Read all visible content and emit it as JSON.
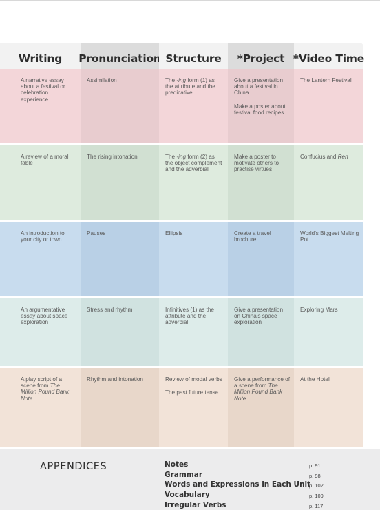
{
  "header": {
    "columns": [
      "Writing",
      "Pronunciation",
      "Structure",
      "*Project",
      "*Video Time"
    ]
  },
  "row_colors": [
    [
      "#f3d6d9",
      "#e8cccf",
      "#f3d6d9",
      "#e8cccf",
      "#f3d6d9"
    ],
    [
      "#deebde",
      "#d1e0d2",
      "#deebde",
      "#d1e0d2",
      "#deebde"
    ],
    [
      "#c8dcee",
      "#b9d0e6",
      "#c8dcee",
      "#b9d0e6",
      "#c8dcee"
    ],
    [
      "#ddecea",
      "#d0e2e0",
      "#ddecea",
      "#d0e2e0",
      "#ddecea"
    ],
    [
      "#f2e3d8",
      "#e8d7ca",
      "#f2e3d8",
      "#e8d7ca",
      "#f2e3d8"
    ]
  ],
  "units": [
    {
      "writing": [
        "A narrative essay about a festival or celebration experience"
      ],
      "pronunciation": [
        "Assimilation"
      ],
      "structure": [
        "The <i>-ing</i> form (1) as the attribute and the predicative"
      ],
      "project": [
        "Give a presentation about a festival in China",
        "Make a poster about festival food recipes"
      ],
      "video": [
        "The Lantern Festival"
      ]
    },
    {
      "writing": [
        "A review of a moral fable"
      ],
      "pronunciation": [
        "The rising intonation"
      ],
      "structure": [
        "The <i>-ing</i> form (2) as the object complement and the adverbial"
      ],
      "project": [
        "Make a poster to motivate others to practise virtues"
      ],
      "video": [
        "Confucius and <i>Ren</i>"
      ]
    },
    {
      "writing": [
        "An introduction to your city or town"
      ],
      "pronunciation": [
        "Pauses"
      ],
      "structure": [
        "Ellipsis"
      ],
      "project": [
        "Create a travel brochure"
      ],
      "video": [
        "World's Biggest Melting Pot"
      ]
    },
    {
      "writing": [
        "An argumentative essay about space exploration"
      ],
      "pronunciation": [
        "Stress and rhythm"
      ],
      "structure": [
        "Infinitives (1) as the attribute and the adverbial"
      ],
      "project": [
        "Give a presentation on China's space exploration"
      ],
      "video": [
        "Exploring Mars"
      ]
    },
    {
      "writing": [
        "A play script of a scene from <i>The Million Pound Bank Note</i>"
      ],
      "pronunciation": [
        "Rhythm and intonation"
      ],
      "structure": [
        "Review of modal verbs",
        "The past future tense"
      ],
      "project": [
        "Give a performance of a scene from <i>The Million Pound Bank Note</i>"
      ],
      "video": [
        "At the Hotel"
      ]
    }
  ],
  "appendices": {
    "title": "APPENDICES",
    "items": [
      {
        "name": "Notes",
        "page": "p. 91"
      },
      {
        "name": "Grammar",
        "page": "p. 98"
      },
      {
        "name": "Words and Expressions in Each Unit",
        "page": "p. 102"
      },
      {
        "name": "Vocabulary",
        "page": "p. 109"
      },
      {
        "name": "Irregular Verbs",
        "page": "p. 117"
      }
    ]
  }
}
